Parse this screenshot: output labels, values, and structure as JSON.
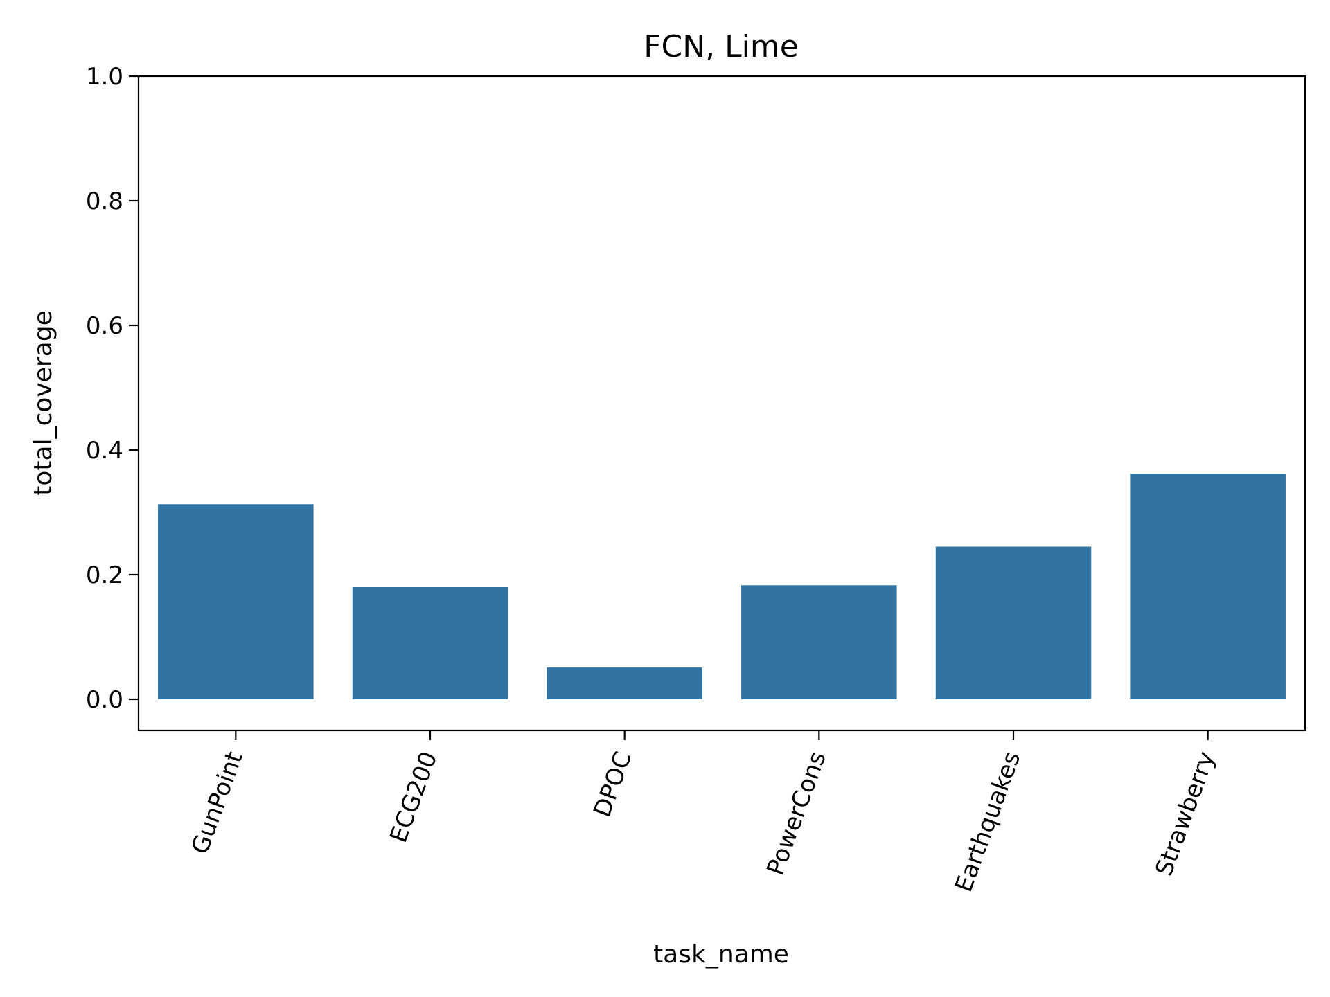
{
  "chart_data": {
    "type": "bar",
    "title": "FCN, Lime",
    "xlabel": "task_name",
    "ylabel": "total_coverage",
    "categories": [
      "GunPoint",
      "ECG200",
      "DPOC",
      "PowerCons",
      "Earthquakes",
      "Strawberry"
    ],
    "values": [
      0.313,
      0.18,
      0.051,
      0.183,
      0.245,
      0.362
    ],
    "ylim": [
      -0.05,
      1.0
    ],
    "yticks": [
      "0.0",
      "0.2",
      "0.4",
      "0.6",
      "0.8",
      "1.0"
    ],
    "grid": false,
    "bar_color": "#3274a1"
  }
}
